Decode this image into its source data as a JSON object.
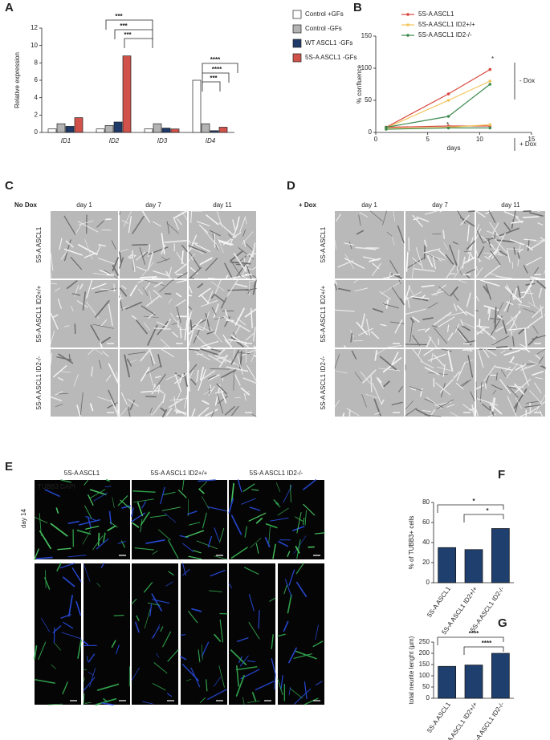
{
  "panels": [
    "A",
    "B",
    "C",
    "D",
    "E",
    "F",
    "G"
  ],
  "chart_data": [
    {
      "type": "bar",
      "ylabel": "Relative expression",
      "categories": [
        "ID1",
        "ID2",
        "ID3",
        "ID4"
      ],
      "series": [
        {
          "name": "Control +GFs",
          "color": "#ffffff",
          "values": [
            0.4,
            0.4,
            0.4,
            6.0
          ]
        },
        {
          "name": "Control -GFs",
          "color": "#b3b3b3",
          "values": [
            1.0,
            0.8,
            1.0,
            1.0
          ]
        },
        {
          "name": "WT ASCL1 -GFs",
          "color": "#1f3a68",
          "values": [
            0.7,
            1.2,
            0.5,
            0.2
          ]
        },
        {
          "name": "5S-A ASCL1 -GFs",
          "color": "#d0524a",
          "values": [
            1.7,
            8.8,
            0.4,
            0.6
          ]
        }
      ],
      "ylim": [
        0,
        12
      ],
      "yticks": [
        0,
        2,
        4,
        6,
        8,
        10,
        12
      ],
      "annotations": [
        "***",
        "***",
        "***",
        "****",
        "****",
        "***"
      ]
    },
    {
      "type": "line",
      "xlabel": "days",
      "ylabel": "% confluence",
      "x": [
        1,
        7,
        11
      ],
      "series": [
        {
          "name": "5S-A ASCL1",
          "color": "#d9463e",
          "values": [
            8,
            60,
            98
          ],
          "dox_values": [
            8,
            10,
            10
          ]
        },
        {
          "name": "5S-A ASCL1 ID2+/+",
          "color": "#f2c45a",
          "values": [
            7,
            50,
            80
          ],
          "dox_values": [
            6,
            8,
            12
          ]
        },
        {
          "name": "5S-A ASCL1 ID2-/-",
          "color": "#3d8a4f",
          "values": [
            8,
            25,
            75
          ],
          "dox_values": [
            5,
            7,
            7
          ]
        }
      ],
      "xlim": [
        0,
        15
      ],
      "xticks": [
        0,
        5,
        10,
        15
      ],
      "ylim": [
        0,
        150
      ],
      "yticks": [
        0,
        50,
        100,
        150
      ],
      "annotations": [
        "- Dox",
        "+ Dox",
        "*",
        "*"
      ]
    },
    {
      "type": "bar",
      "ylabel": "% of TUBB3+ cells",
      "categories": [
        "5S-A ASCL1",
        "5S-A ASCL1 ID2+/+",
        "5S-A ASCL1 ID2-/-"
      ],
      "values": [
        35,
        33,
        54
      ],
      "color": "#1f3f6e",
      "ylim": [
        0,
        80
      ],
      "yticks": [
        0,
        20,
        40,
        60,
        80
      ],
      "annotations": [
        "*",
        "*"
      ]
    },
    {
      "type": "bar",
      "ylabel": "total neurite lenght (μm)",
      "categories": [
        "5S-A ASCL1",
        "5S-A ASCL1 ID2+/+",
        "5S-A ASCL1 ID2-/-"
      ],
      "values": [
        142,
        148,
        200
      ],
      "color": "#1f3f6e",
      "ylim": [
        0,
        250
      ],
      "yticks": [
        0,
        50,
        100,
        150,
        200,
        250
      ],
      "annotations": [
        "****",
        "****"
      ]
    }
  ],
  "panel_c": {
    "condition": "No Dox",
    "columns": [
      "day 1",
      "day 7",
      "day 11"
    ],
    "rows": [
      "5S-A ASCL1",
      "5S-A ASCL1 ID2+/+",
      "5S-A ASCL1 ID2-/-"
    ]
  },
  "panel_d": {
    "condition": "+ Dox",
    "columns": [
      "day 1",
      "day 7",
      "day 11"
    ],
    "rows": [
      "5S-A ASCL1",
      "5S-A ASCL1 ID2+/+",
      "5S-A ASCL1 ID2-/-"
    ]
  },
  "panel_e": {
    "stain": "TUBB3 DAPI",
    "timepoint": "day 14",
    "columns": [
      "5S-A ASCL1",
      "5S-A ASCL1 ID2+/+",
      "5S-A ASCL1 ID2-/-"
    ]
  }
}
